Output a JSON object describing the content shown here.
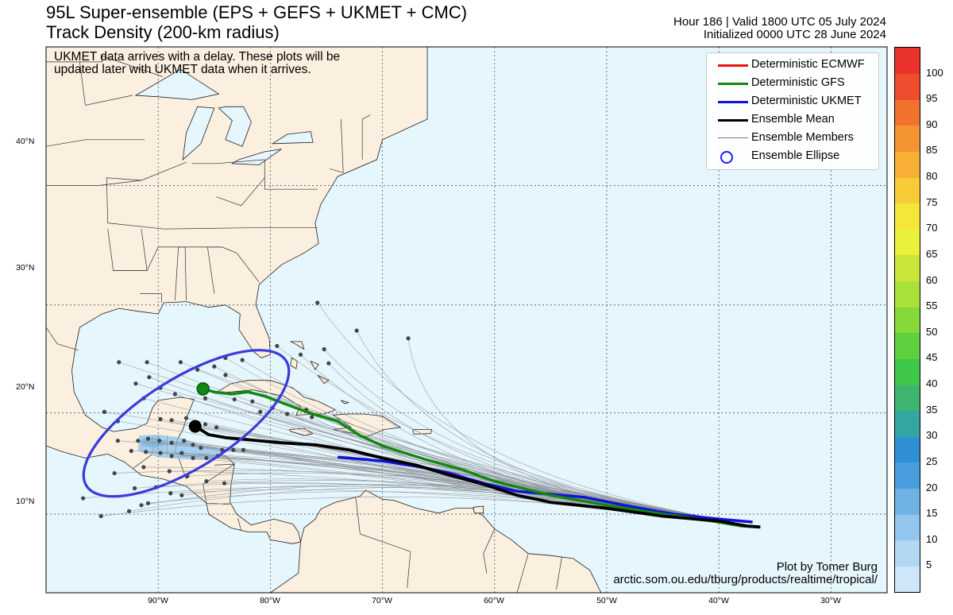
{
  "header": {
    "title_line1": "95L Super-ensemble (EPS + GEFS + UKMET + CMC)",
    "title_line2": "Track Density (200-km radius)",
    "valid_line": "Hour 186 | Valid 1800 UTC 05 July 2024",
    "init_line": "Initialized 0000 UTC 28 June 2024"
  },
  "note": {
    "line1": "UKMET data arrives with a delay. These plots will be",
    "line2": "updated later with UKMET data when it arrives."
  },
  "credit": {
    "line1": "Plot by Tomer Burg",
    "line2": "arctic.som.ou.edu/tburg/products/realtime/tropical/"
  },
  "legend": [
    {
      "label": "Deterministic ECMWF",
      "color": "#ee1111",
      "kind": "thick"
    },
    {
      "label": "Deterministic GFS",
      "color": "#118811",
      "kind": "thick"
    },
    {
      "label": "Deterministic UKMET",
      "color": "#1111dd",
      "kind": "thick"
    },
    {
      "label": "Ensemble Mean",
      "color": "#000000",
      "kind": "thick"
    },
    {
      "label": "Ensemble Members",
      "color": "#777777",
      "kind": "thin"
    },
    {
      "label": "Ensemble Ellipse",
      "color": "#1a1aff",
      "kind": "circle"
    }
  ],
  "axes": {
    "lat_ticks": [
      "40°N",
      "30°N",
      "20°N",
      "10°N"
    ],
    "lon_ticks": [
      "90°W",
      "80°W",
      "70°W",
      "60°W",
      "50°W",
      "40°W",
      "30°W"
    ]
  },
  "colorbar": {
    "ticks": [
      "5",
      "10",
      "15",
      "20",
      "25",
      "30",
      "35",
      "40",
      "45",
      "50",
      "55",
      "60",
      "65",
      "70",
      "75",
      "80",
      "85",
      "90",
      "95",
      "100"
    ],
    "colors": [
      "#cfe6f8",
      "#b2d7f3",
      "#92c6ee",
      "#6fb2e6",
      "#4a9ddd",
      "#2f8fd5",
      "#33a6a2",
      "#3fb471",
      "#3fc74a",
      "#5ecf3f",
      "#86d93b",
      "#a9e03a",
      "#c8e63a",
      "#eaf03b",
      "#f7e63a",
      "#f8cc38",
      "#f7af35",
      "#f59432",
      "#f2712f",
      "#ee4e2e",
      "#e9332c"
    ]
  },
  "map": {
    "lon_range": [
      -100,
      -25
    ],
    "lat_range": [
      2,
      50
    ],
    "ocean_color": "#e6f6fd",
    "land_color": "#fbefdf",
    "density_color": "#8cc2ec",
    "ellipse": {
      "center": [
        -87.5,
        19
      ],
      "rx_deg": 10.5,
      "ry_deg": 4.4,
      "rotation_deg": -32
    },
    "tracks": {
      "ensemble_mean": [
        [
          -36.3,
          8.7
        ],
        [
          -37.5,
          8.8
        ],
        [
          -40,
          9.3
        ],
        [
          -45,
          9.8
        ],
        [
          -50,
          10.6
        ],
        [
          -55,
          11.2
        ],
        [
          -58,
          11.9
        ],
        [
          -61,
          13
        ],
        [
          -64,
          13.9
        ],
        [
          -67,
          14.9
        ],
        [
          -70,
          15.6
        ],
        [
          -73,
          16.4
        ],
        [
          -76,
          16.9
        ],
        [
          -79,
          17.1
        ],
        [
          -82,
          17.4
        ],
        [
          -84,
          17.6
        ],
        [
          -85.5,
          17.9
        ],
        [
          -86.7,
          18.7
        ]
      ],
      "gfs": [
        [
          -36.3,
          8.7
        ],
        [
          -38,
          8.8
        ],
        [
          -41,
          9.4
        ],
        [
          -45,
          10
        ],
        [
          -50,
          10.9
        ],
        [
          -55,
          11.9
        ],
        [
          -60,
          13.3
        ],
        [
          -63,
          14.5
        ],
        [
          -66,
          15.4
        ],
        [
          -70,
          16.8
        ],
        [
          -72,
          17.8
        ],
        [
          -74,
          19.2
        ],
        [
          -76.5,
          20
        ],
        [
          -79,
          21
        ],
        [
          -80.5,
          21.6
        ],
        [
          -82,
          22
        ],
        [
          -83.5,
          21.8
        ],
        [
          -85,
          22
        ],
        [
          -86,
          22.3
        ]
      ],
      "ukmet": [
        [
          -37,
          9.2
        ],
        [
          -40,
          9.5
        ],
        [
          -44,
          10
        ],
        [
          -48,
          10.8
        ],
        [
          -52,
          11.7
        ],
        [
          -55,
          12
        ],
        [
          -58,
          12.3
        ],
        [
          -61,
          13.1
        ],
        [
          -64,
          14.1
        ],
        [
          -67,
          14.8
        ],
        [
          -70,
          15.3
        ],
        [
          -74,
          15.7
        ]
      ],
      "members_end": [
        [
          -38,
          8.8
        ],
        [
          -36.5,
          8.7
        ]
      ]
    },
    "member_endpoints": [
      [
        -75.8,
        30.2
      ],
      [
        -72.3,
        27.7
      ],
      [
        -67.7,
        27
      ],
      [
        -75.2,
        26
      ],
      [
        -74.8,
        24.7
      ],
      [
        -77.3,
        25.5
      ],
      [
        -79.4,
        26.3
      ],
      [
        -82.5,
        25
      ],
      [
        -84,
        25.2
      ],
      [
        -93.5,
        24.8
      ],
      [
        -91,
        24.8
      ],
      [
        -88,
        24.8
      ],
      [
        -86.5,
        24.1
      ],
      [
        -85,
        24.4
      ],
      [
        -84,
        23.6
      ],
      [
        -92,
        22.8
      ],
      [
        -90.8,
        23.4
      ],
      [
        -89.8,
        22.4
      ],
      [
        -91.3,
        21.4
      ],
      [
        -88.5,
        21.8
      ],
      [
        -85.8,
        21.4
      ],
      [
        -83.2,
        21.3
      ],
      [
        -81.6,
        21.1
      ],
      [
        -80.9,
        20.1
      ],
      [
        -79.8,
        20.5
      ],
      [
        -78.5,
        19.9
      ],
      [
        -76.8,
        20.3
      ],
      [
        -76.3,
        19.6
      ],
      [
        -94.8,
        20.1
      ],
      [
        -93.6,
        19.2
      ],
      [
        -89.8,
        19.4
      ],
      [
        -88.8,
        19.3
      ],
      [
        -87.5,
        19.5
      ],
      [
        -86.5,
        18.7
      ],
      [
        -85.8,
        18.9
      ],
      [
        -84.8,
        18.6
      ],
      [
        -93.6,
        17.3
      ],
      [
        -91.8,
        17.3
      ],
      [
        -90.9,
        17.5
      ],
      [
        -89.9,
        17.3
      ],
      [
        -88.8,
        17.1
      ],
      [
        -87.7,
        17.3
      ],
      [
        -86.9,
        16.9
      ],
      [
        -86.2,
        16.6
      ],
      [
        -84.3,
        16.4
      ],
      [
        -83.3,
        16.4
      ],
      [
        -82.4,
        16.4
      ],
      [
        -92.4,
        16.3
      ],
      [
        -91.1,
        16.2
      ],
      [
        -89.8,
        16.1
      ],
      [
        -88.8,
        15.8
      ],
      [
        -87.9,
        16.1
      ],
      [
        -86.9,
        15.6
      ],
      [
        -85.7,
        15.6
      ],
      [
        -84.7,
        15.8
      ],
      [
        -93.9,
        14.1
      ],
      [
        -91.3,
        14.7
      ],
      [
        -89,
        14.3
      ],
      [
        -87.4,
        13.8
      ],
      [
        -85.7,
        13.3
      ],
      [
        -84.1,
        13.1
      ],
      [
        -92.1,
        12.6
      ],
      [
        -90.2,
        12.7
      ],
      [
        -88.9,
        12.1
      ],
      [
        -87.9,
        11.9
      ],
      [
        -90.9,
        11.1
      ],
      [
        -91.5,
        10.9
      ],
      [
        -96.7,
        11.6
      ],
      [
        -95.1,
        9.8
      ],
      [
        -92.6,
        10.3
      ]
    ],
    "center_marks": {
      "mean": [
        -86.7,
        18.7
      ],
      "gfs": [
        -86,
        22.3
      ]
    }
  }
}
